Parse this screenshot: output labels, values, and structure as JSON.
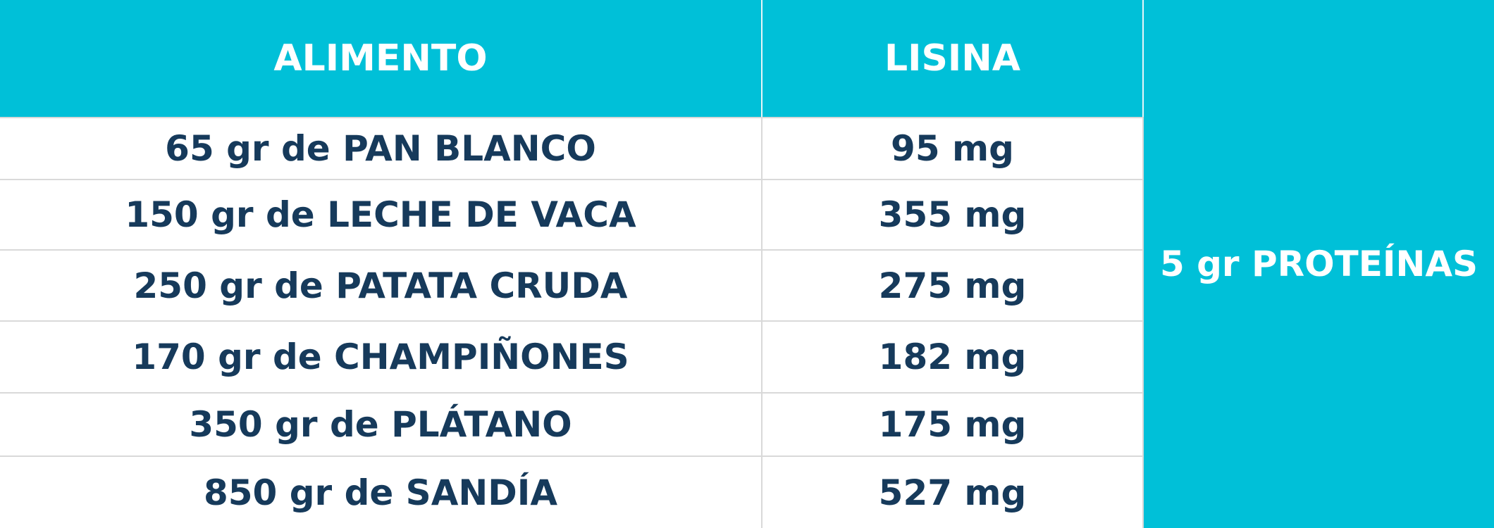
{
  "colors": {
    "header_bg": "#00c0d8",
    "header_text": "#ffffff",
    "body_text": "#163a5b",
    "grid_line": "#d9d9d9"
  },
  "header": {
    "col_food": "ALIMENTO",
    "col_lysine": "LISINA"
  },
  "side_label": "5 gr PROTEÍNAS",
  "rows": [
    {
      "food": "65 gr de PAN BLANCO",
      "lysine": "95 mg"
    },
    {
      "food": "150 gr de LECHE DE VACA",
      "lysine": "355 mg"
    },
    {
      "food": "250 gr de PATATA CRUDA",
      "lysine": "275 mg"
    },
    {
      "food": "170 gr de CHAMPIÑONES",
      "lysine": "182 mg"
    },
    {
      "food": "350 gr de PLÁTANO",
      "lysine": "175 mg"
    },
    {
      "food": "850 gr de SANDÍA",
      "lysine": "527 mg"
    }
  ]
}
